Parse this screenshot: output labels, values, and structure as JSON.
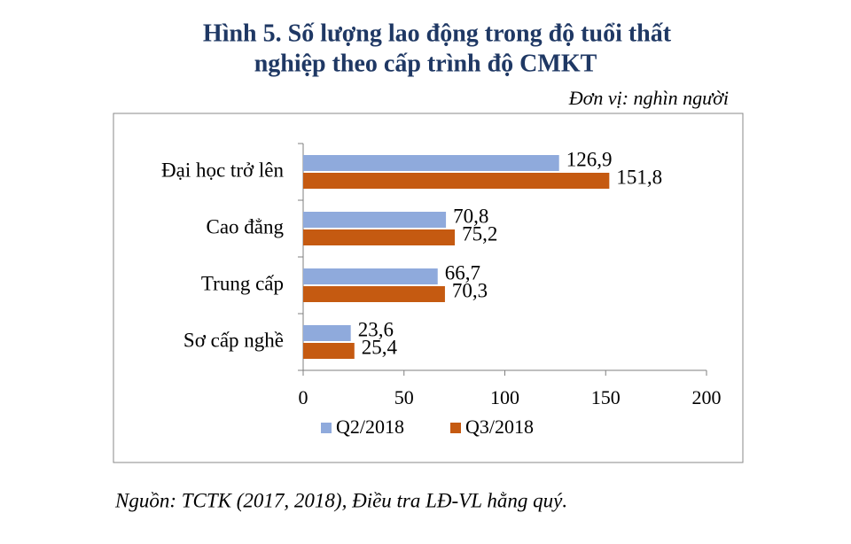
{
  "chart_data": {
    "type": "bar",
    "orientation": "horizontal",
    "title": [
      "Hình 5. Số lượng lao động trong độ tuổi thất",
      "nghiệp theo cấp trình độ CMKT"
    ],
    "unit": "Đơn vị: nghìn người",
    "source": "Nguồn: TCTK (2017, 2018), Điều tra LĐ-VL hằng quý.",
    "categories": [
      "Đại học trở lên",
      "Cao đẳng",
      "Trung cấp",
      "Sơ cấp nghề"
    ],
    "series": [
      {
        "name": "Q2/2018",
        "color": "#8faadc",
        "values": [
          126.9,
          70.8,
          66.7,
          23.6
        ],
        "value_labels": [
          "126,9",
          "70,8",
          "66,7",
          "23,6"
        ]
      },
      {
        "name": "Q3/2018",
        "color": "#c55a11",
        "values": [
          151.8,
          75.2,
          70.3,
          25.4
        ],
        "value_labels": [
          "151,8",
          "75,2",
          "70,3",
          "25,4"
        ]
      }
    ],
    "xlim": [
      0,
      200
    ],
    "xticks": [
      0,
      50,
      100,
      150,
      200
    ],
    "grid": false,
    "legend": "bottom"
  }
}
